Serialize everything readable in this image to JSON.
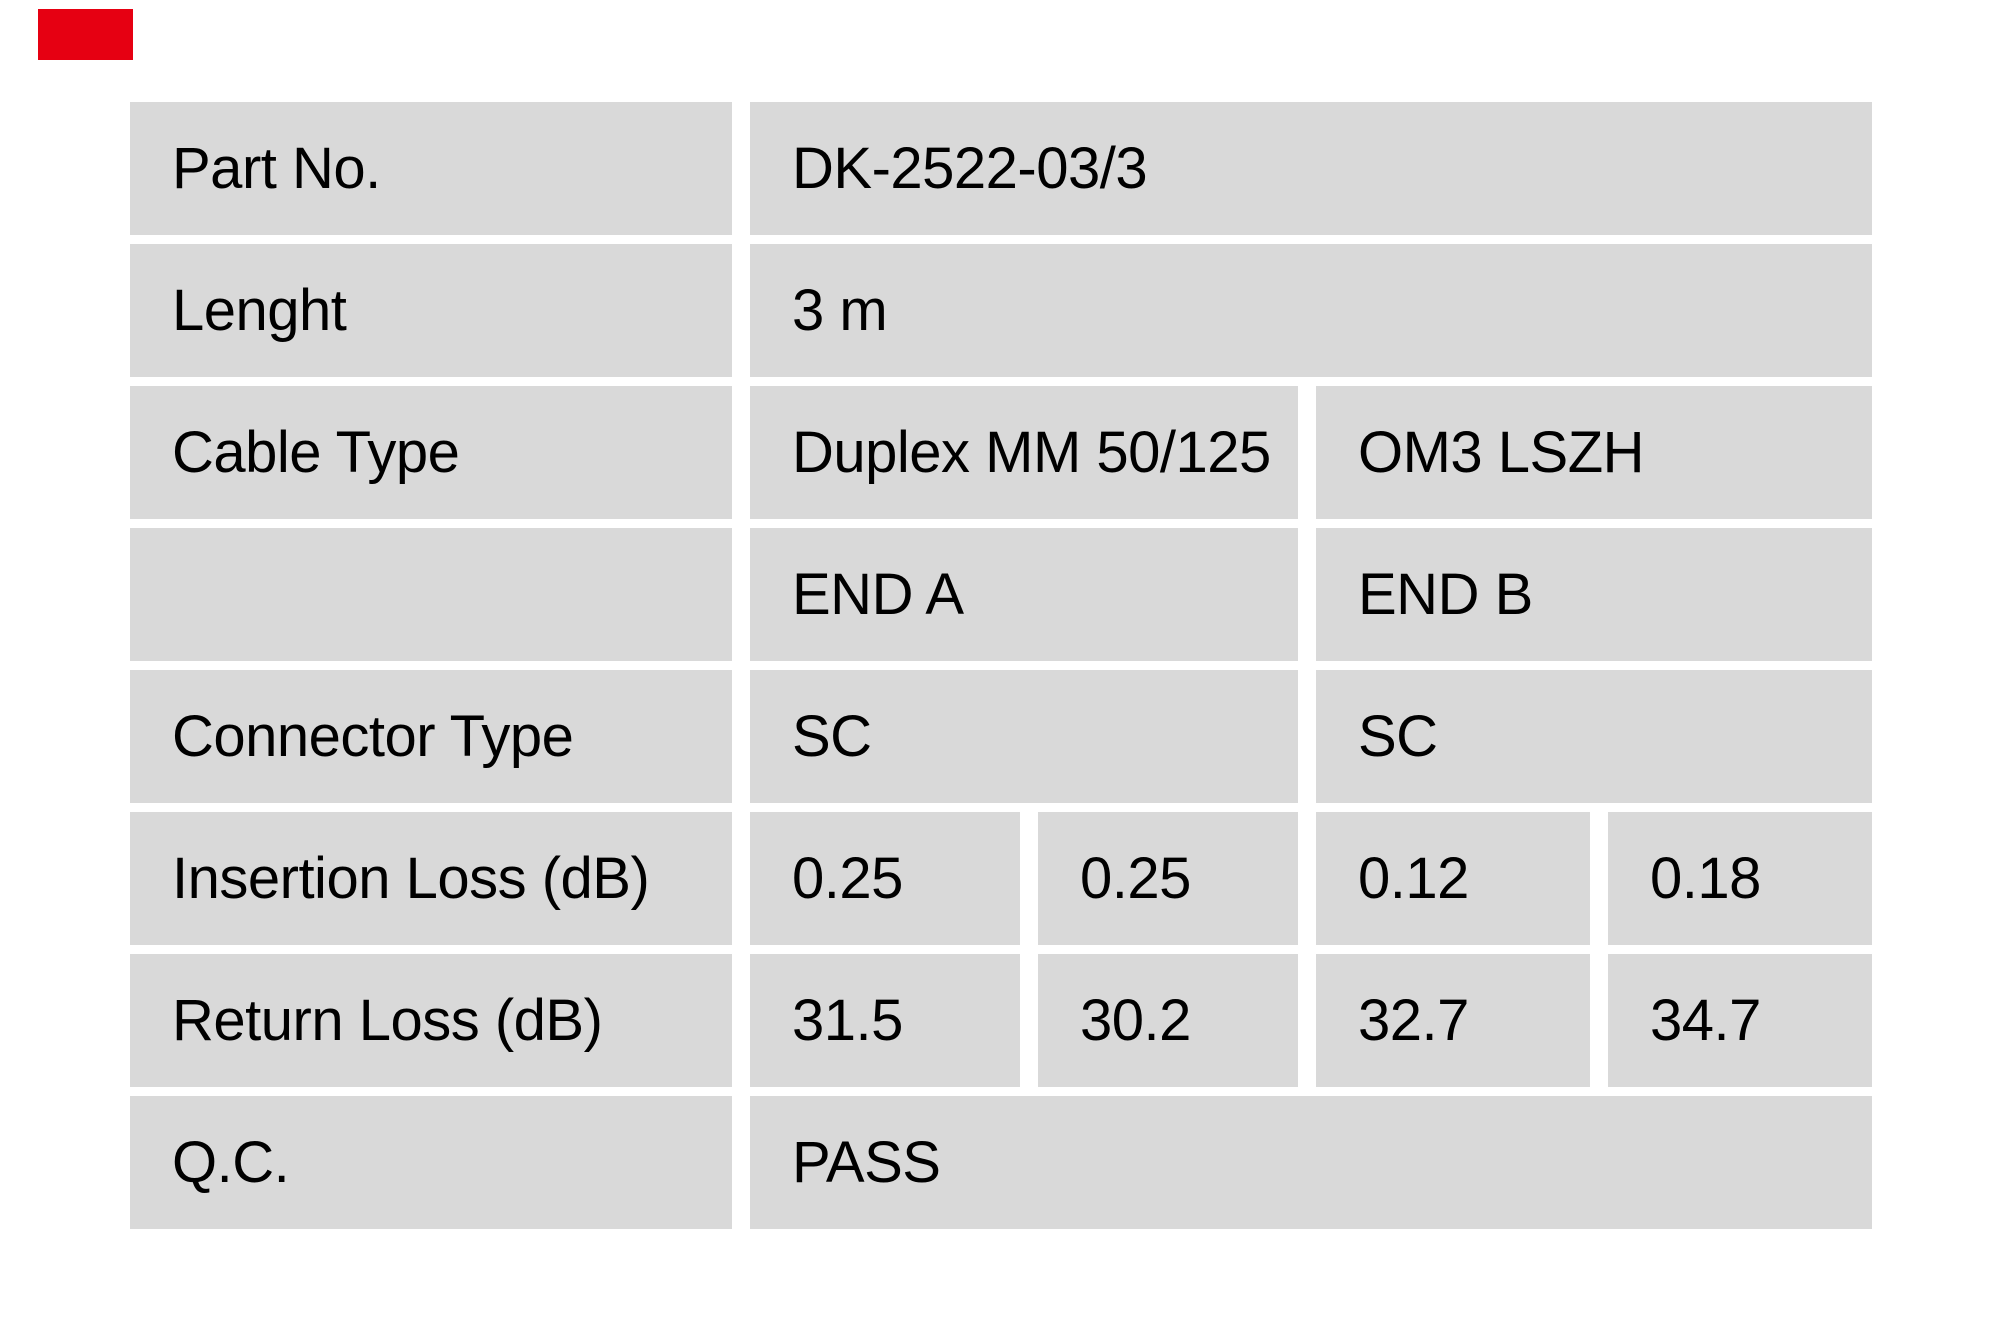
{
  "page": {
    "background": "#ffffff"
  },
  "logo": {
    "color": "#e60012",
    "name": "brand-logo-mark"
  },
  "table": {
    "cell_bg": "#d9d9d9",
    "text_color": "#000000",
    "rows": {
      "part_no": {
        "label": "Part No.",
        "value": "DK-2522-03/3"
      },
      "length": {
        "label": "Lenght",
        "value": "3 m"
      },
      "cable_type": {
        "label": "Cable Type",
        "end_a": "Duplex MM 50/125",
        "end_b": "OM3 LSZH"
      },
      "ends": {
        "label": "",
        "end_a": "END A",
        "end_b": "END B"
      },
      "connector": {
        "label": "Connector Type",
        "end_a": "SC",
        "end_b": "SC"
      },
      "insertion_loss": {
        "label": "Insertion Loss (dB)",
        "values": [
          "0.25",
          "0.25",
          "0.12",
          "0.18"
        ]
      },
      "return_loss": {
        "label": "Return Loss (dB)",
        "values": [
          "31.5",
          "30.2",
          "32.7",
          "34.7"
        ]
      },
      "qc": {
        "label": "Q.C.",
        "value": "PASS"
      }
    }
  }
}
